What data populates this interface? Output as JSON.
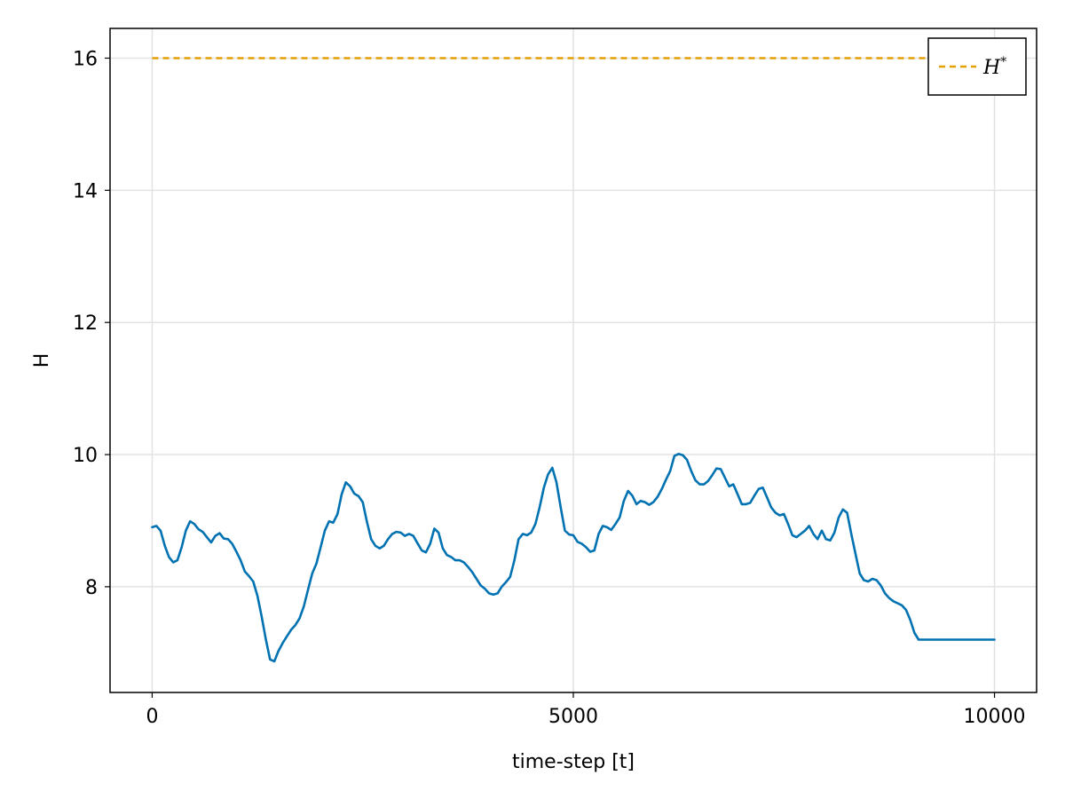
{
  "chart_data": {
    "type": "line",
    "title": "",
    "xlabel": "time-step [t]",
    "ylabel": "H",
    "xlim": [
      -500,
      10500
    ],
    "ylim": [
      6.4,
      16.45
    ],
    "x_ticks": [
      0,
      5000,
      10000
    ],
    "x_tick_labels": [
      "0",
      "5000",
      "10000"
    ],
    "y_ticks": [
      8,
      10,
      12,
      14,
      16
    ],
    "y_tick_labels": [
      "8",
      "10",
      "12",
      "14",
      "16"
    ],
    "grid": true,
    "legend": {
      "placement": "top-right",
      "entries": [
        {
          "label": "H",
          "superscript": "*",
          "series": "reference"
        }
      ]
    },
    "series": [
      {
        "id": "measured",
        "color": "#0072b2",
        "style": "solid",
        "points": [
          [
            0,
            8.9
          ],
          [
            50,
            8.92
          ],
          [
            100,
            8.85
          ],
          [
            150,
            8.62
          ],
          [
            200,
            8.45
          ],
          [
            250,
            8.37
          ],
          [
            300,
            8.4
          ],
          [
            350,
            8.6
          ],
          [
            400,
            8.85
          ],
          [
            450,
            8.99
          ],
          [
            500,
            8.95
          ],
          [
            550,
            8.87
          ],
          [
            600,
            8.83
          ],
          [
            650,
            8.75
          ],
          [
            700,
            8.67
          ],
          [
            750,
            8.77
          ],
          [
            800,
            8.81
          ],
          [
            850,
            8.73
          ],
          [
            900,
            8.72
          ],
          [
            950,
            8.65
          ],
          [
            1000,
            8.53
          ],
          [
            1050,
            8.4
          ],
          [
            1100,
            8.23
          ],
          [
            1150,
            8.16
          ],
          [
            1200,
            8.08
          ],
          [
            1250,
            7.86
          ],
          [
            1300,
            7.55
          ],
          [
            1350,
            7.2
          ],
          [
            1400,
            6.9
          ],
          [
            1450,
            6.87
          ],
          [
            1500,
            7.03
          ],
          [
            1550,
            7.15
          ],
          [
            1600,
            7.25
          ],
          [
            1650,
            7.35
          ],
          [
            1700,
            7.42
          ],
          [
            1750,
            7.52
          ],
          [
            1800,
            7.7
          ],
          [
            1850,
            7.95
          ],
          [
            1900,
            8.2
          ],
          [
            1950,
            8.35
          ],
          [
            2000,
            8.6
          ],
          [
            2050,
            8.85
          ],
          [
            2100,
            8.99
          ],
          [
            2150,
            8.97
          ],
          [
            2200,
            9.1
          ],
          [
            2250,
            9.4
          ],
          [
            2300,
            9.58
          ],
          [
            2350,
            9.52
          ],
          [
            2400,
            9.41
          ],
          [
            2450,
            9.37
          ],
          [
            2500,
            9.28
          ],
          [
            2550,
            8.98
          ],
          [
            2600,
            8.72
          ],
          [
            2650,
            8.62
          ],
          [
            2700,
            8.58
          ],
          [
            2750,
            8.62
          ],
          [
            2800,
            8.72
          ],
          [
            2850,
            8.8
          ],
          [
            2900,
            8.83
          ],
          [
            2950,
            8.82
          ],
          [
            3000,
            8.77
          ],
          [
            3050,
            8.8
          ],
          [
            3100,
            8.77
          ],
          [
            3150,
            8.66
          ],
          [
            3200,
            8.55
          ],
          [
            3250,
            8.52
          ],
          [
            3300,
            8.65
          ],
          [
            3350,
            8.88
          ],
          [
            3400,
            8.82
          ],
          [
            3450,
            8.58
          ],
          [
            3500,
            8.48
          ],
          [
            3550,
            8.45
          ],
          [
            3600,
            8.4
          ],
          [
            3650,
            8.4
          ],
          [
            3700,
            8.37
          ],
          [
            3750,
            8.3
          ],
          [
            3800,
            8.22
          ],
          [
            3850,
            8.12
          ],
          [
            3900,
            8.02
          ],
          [
            3950,
            7.97
          ],
          [
            4000,
            7.9
          ],
          [
            4050,
            7.88
          ],
          [
            4100,
            7.9
          ],
          [
            4150,
            8.0
          ],
          [
            4200,
            8.07
          ],
          [
            4250,
            8.15
          ],
          [
            4300,
            8.4
          ],
          [
            4350,
            8.72
          ],
          [
            4400,
            8.8
          ],
          [
            4450,
            8.78
          ],
          [
            4500,
            8.82
          ],
          [
            4550,
            8.95
          ],
          [
            4600,
            9.2
          ],
          [
            4650,
            9.5
          ],
          [
            4700,
            9.7
          ],
          [
            4750,
            9.8
          ],
          [
            4800,
            9.58
          ],
          [
            4850,
            9.2
          ],
          [
            4900,
            8.85
          ],
          [
            4950,
            8.79
          ],
          [
            5000,
            8.78
          ],
          [
            5050,
            8.68
          ],
          [
            5100,
            8.65
          ],
          [
            5150,
            8.6
          ],
          [
            5200,
            8.53
          ],
          [
            5250,
            8.55
          ],
          [
            5300,
            8.8
          ],
          [
            5350,
            8.92
          ],
          [
            5400,
            8.9
          ],
          [
            5450,
            8.86
          ],
          [
            5500,
            8.95
          ],
          [
            5550,
            9.05
          ],
          [
            5600,
            9.3
          ],
          [
            5650,
            9.45
          ],
          [
            5700,
            9.38
          ],
          [
            5750,
            9.25
          ],
          [
            5800,
            9.3
          ],
          [
            5850,
            9.28
          ],
          [
            5900,
            9.24
          ],
          [
            5950,
            9.28
          ],
          [
            6000,
            9.36
          ],
          [
            6050,
            9.48
          ],
          [
            6100,
            9.62
          ],
          [
            6150,
            9.75
          ],
          [
            6200,
            9.98
          ],
          [
            6250,
            10.01
          ],
          [
            6300,
            9.99
          ],
          [
            6350,
            9.92
          ],
          [
            6400,
            9.75
          ],
          [
            6450,
            9.61
          ],
          [
            6500,
            9.55
          ],
          [
            6550,
            9.55
          ],
          [
            6600,
            9.6
          ],
          [
            6650,
            9.69
          ],
          [
            6700,
            9.79
          ],
          [
            6750,
            9.78
          ],
          [
            6800,
            9.65
          ],
          [
            6850,
            9.52
          ],
          [
            6900,
            9.55
          ],
          [
            6950,
            9.4
          ],
          [
            7000,
            9.25
          ],
          [
            7050,
            9.25
          ],
          [
            7100,
            9.27
          ],
          [
            7150,
            9.38
          ],
          [
            7200,
            9.48
          ],
          [
            7250,
            9.5
          ],
          [
            7300,
            9.35
          ],
          [
            7350,
            9.2
          ],
          [
            7400,
            9.12
          ],
          [
            7450,
            9.08
          ],
          [
            7500,
            9.1
          ],
          [
            7550,
            8.95
          ],
          [
            7600,
            8.78
          ],
          [
            7650,
            8.75
          ],
          [
            7700,
            8.8
          ],
          [
            7750,
            8.85
          ],
          [
            7800,
            8.92
          ],
          [
            7850,
            8.8
          ],
          [
            7900,
            8.72
          ],
          [
            7950,
            8.85
          ],
          [
            8000,
            8.72
          ],
          [
            8050,
            8.7
          ],
          [
            8100,
            8.82
          ],
          [
            8150,
            9.05
          ],
          [
            8200,
            9.17
          ],
          [
            8250,
            9.12
          ],
          [
            8300,
            8.8
          ],
          [
            8350,
            8.5
          ],
          [
            8400,
            8.2
          ],
          [
            8450,
            8.1
          ],
          [
            8500,
            8.08
          ],
          [
            8550,
            8.12
          ],
          [
            8600,
            8.1
          ],
          [
            8650,
            8.02
          ],
          [
            8700,
            7.9
          ],
          [
            8750,
            7.83
          ],
          [
            8800,
            7.78
          ],
          [
            8850,
            7.75
          ],
          [
            8900,
            7.72
          ],
          [
            8950,
            7.65
          ],
          [
            9000,
            7.5
          ],
          [
            9050,
            7.3
          ],
          [
            9100,
            7.2
          ],
          [
            10000,
            7.2
          ]
        ]
      },
      {
        "id": "reference",
        "color": "#e69f00",
        "style": "dashed",
        "points": [
          [
            0,
            16.0
          ],
          [
            10000,
            16.0
          ]
        ]
      }
    ]
  }
}
